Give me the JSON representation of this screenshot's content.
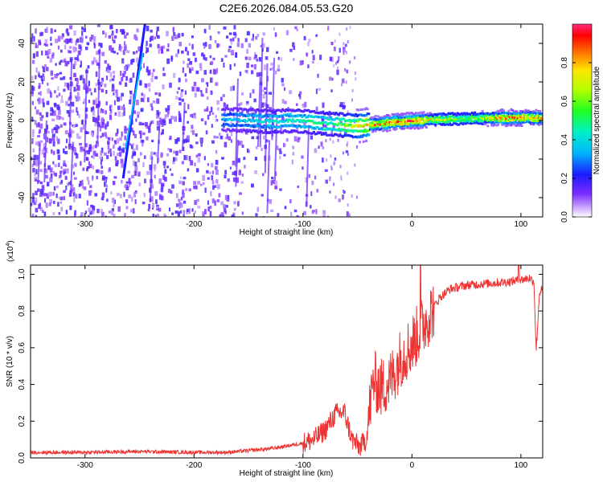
{
  "figure": {
    "title": "C2E6.2026.084.05.53.G20"
  },
  "chart_data": [
    {
      "type": "heatmap",
      "name": "spectrogram",
      "xlabel": "Height of straight line (km)",
      "ylabel": "Frequency (Hz)",
      "xlim": [
        -350,
        120
      ],
      "ylim": [
        -50,
        50
      ],
      "x_ticks": [
        -300,
        -200,
        -100,
        0,
        100
      ],
      "y_ticks": [
        -40,
        -20,
        0,
        20,
        40
      ],
      "colorbar": {
        "label": "Normalized spectral amplitude",
        "range": [
          0,
          1
        ],
        "ticks": [
          "0.0",
          "0.2",
          "0.4",
          "0.6",
          "0.8"
        ],
        "tick_values": [
          0.0,
          0.2,
          0.4,
          0.6,
          0.8
        ]
      },
      "ridge": [
        {
          "x": -170,
          "y": 0.5,
          "amp": 0.35
        },
        {
          "x": -150,
          "y": 0.0,
          "amp": 0.4
        },
        {
          "x": -130,
          "y": -0.5,
          "amp": 0.45
        },
        {
          "x": -110,
          "y": 0.0,
          "amp": 0.45
        },
        {
          "x": -90,
          "y": -1.0,
          "amp": 0.5
        },
        {
          "x": -70,
          "y": -2.0,
          "amp": 0.55
        },
        {
          "x": -55,
          "y": -3.0,
          "amp": 0.7
        },
        {
          "x": -45,
          "y": -2.5,
          "amp": 0.8
        },
        {
          "x": -35,
          "y": -2.0,
          "amp": 0.85
        },
        {
          "x": -20,
          "y": -1.0,
          "amp": 0.9
        },
        {
          "x": 0,
          "y": 0.0,
          "amp": 0.95
        },
        {
          "x": 20,
          "y": 0.5,
          "amp": 0.7
        },
        {
          "x": 50,
          "y": 1.0,
          "amp": 0.6
        },
        {
          "x": 90,
          "y": 1.5,
          "amp": 0.9
        },
        {
          "x": 120,
          "y": 1.5,
          "amp": 0.8
        }
      ],
      "tilted_streak": {
        "from": [
          -265,
          -30
        ],
        "to": [
          -245,
          50
        ]
      }
    },
    {
      "type": "line",
      "name": "snr",
      "xlabel": "Height of straight line (km)",
      "ylabel": "SNR (10 * v/v)",
      "multiplier": "(x10",
      "multiplier_exp": "4",
      "multiplier_close": ")",
      "xlim": [
        -350,
        120
      ],
      "ylim": [
        0,
        1.05
      ],
      "x_ticks": [
        -300,
        -200,
        -100,
        0,
        100
      ],
      "y_ticks": [
        "0.0",
        "0.2",
        "0.4",
        "0.6",
        "0.8",
        "1.0"
      ],
      "y_tick_values": [
        0.0,
        0.2,
        0.4,
        0.6,
        0.8,
        1.0
      ],
      "series": [
        {
          "name": "SNR",
          "color": "#ee3333",
          "points": [
            [
              -350,
              0.03
            ],
            [
              -300,
              0.03
            ],
            [
              -250,
              0.035
            ],
            [
              -200,
              0.03
            ],
            [
              -170,
              0.03
            ],
            [
              -150,
              0.04
            ],
            [
              -130,
              0.05
            ],
            [
              -110,
              0.07
            ],
            [
              -100,
              0.08
            ],
            [
              -90,
              0.1
            ],
            [
              -80,
              0.15
            ],
            [
              -70,
              0.24
            ],
            [
              -62,
              0.25
            ],
            [
              -55,
              0.1
            ],
            [
              -48,
              0.06
            ],
            [
              -42,
              0.1
            ],
            [
              -38,
              0.3
            ],
            [
              -35,
              0.42
            ],
            [
              -28,
              0.38
            ],
            [
              -20,
              0.42
            ],
            [
              -10,
              0.55
            ],
            [
              0,
              0.62
            ],
            [
              10,
              0.72
            ],
            [
              18,
              0.8
            ],
            [
              25,
              0.87
            ],
            [
              35,
              0.92
            ],
            [
              50,
              0.94
            ],
            [
              70,
              0.95
            ],
            [
              90,
              0.96
            ],
            [
              100,
              0.97
            ],
            [
              108,
              0.98
            ],
            [
              112,
              0.96
            ],
            [
              114,
              0.58
            ],
            [
              117,
              0.9
            ],
            [
              120,
              0.92
            ]
          ]
        }
      ]
    }
  ]
}
